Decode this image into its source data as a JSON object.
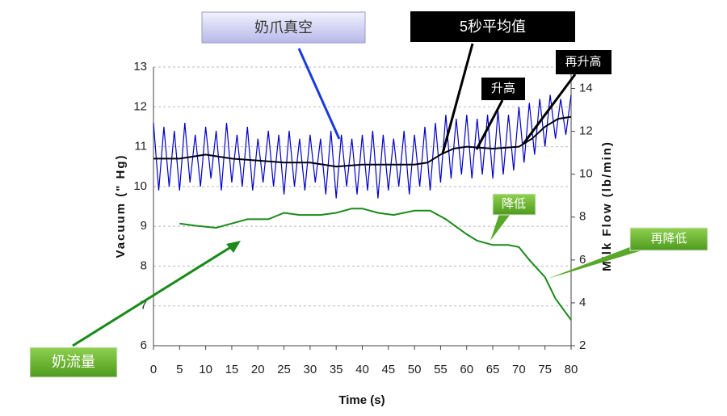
{
  "chart_data": {
    "type": "line",
    "xlabel": "Time (s)",
    "ylabel": "Vacuum (\" Hg)",
    "y2label": "Milk Flow (lb/min)",
    "xlim": [
      0,
      80
    ],
    "xticks": [
      0,
      5,
      10,
      15,
      20,
      25,
      30,
      35,
      40,
      45,
      50,
      55,
      60,
      65,
      70,
      75,
      80
    ],
    "ylim": [
      6,
      13
    ],
    "yticks": [
      6,
      7,
      8,
      9,
      10,
      11,
      12,
      13
    ],
    "y2lim": [
      2,
      15
    ],
    "y2ticks": [
      2,
      4,
      6,
      8,
      10,
      12,
      14
    ],
    "grid": true,
    "series": [
      {
        "name": "奶爪真空",
        "color": "#0000cc",
        "x": [
          0,
          1,
          2,
          3,
          4,
          5,
          6,
          7,
          8,
          9,
          10,
          11,
          12,
          13,
          14,
          15,
          16,
          17,
          18,
          19,
          20,
          21,
          22,
          23,
          24,
          25,
          26,
          27,
          28,
          29,
          30,
          31,
          32,
          33,
          34,
          35,
          36,
          37,
          38,
          39,
          40,
          41,
          42,
          43,
          44,
          45,
          46,
          47,
          48,
          49,
          50,
          51,
          52,
          53,
          54,
          55,
          56,
          57,
          58,
          59,
          60,
          61,
          62,
          63,
          64,
          65,
          66,
          67,
          68,
          69,
          70,
          71,
          72,
          73,
          74,
          75,
          76,
          77,
          78,
          79,
          80
        ],
        "values": [
          11.6,
          9.9,
          11.5,
          10.0,
          11.4,
          9.9,
          11.6,
          10.1,
          11.3,
          10.0,
          11.5,
          10.2,
          11.4,
          9.9,
          11.6,
          10.1,
          11.3,
          10.0,
          11.5,
          9.9,
          11.2,
          10.1,
          11.4,
          10.0,
          11.3,
          9.8,
          11.4,
          10.0,
          11.2,
          9.9,
          11.3,
          10.1,
          11.2,
          9.8,
          11.4,
          9.7,
          11.3,
          10.0,
          11.2,
          9.8,
          11.3,
          9.9,
          11.4,
          9.7,
          11.3,
          9.9,
          11.2,
          10.0,
          11.4,
          9.8,
          11.3,
          10.0,
          11.5,
          9.9,
          11.6,
          10.1,
          11.8,
          10.2,
          11.7,
          10.3,
          11.8,
          10.2,
          11.7,
          10.3,
          11.8,
          10.2,
          11.9,
          10.3,
          11.8,
          10.4,
          12.0,
          10.6,
          12.1,
          10.8,
          12.2,
          11.0,
          12.3,
          11.2,
          12.2,
          11.3,
          12.3
        ]
      },
      {
        "name": "5秒平均值",
        "color": "#000000",
        "x": [
          0,
          5,
          10,
          15,
          20,
          25,
          30,
          35,
          40,
          45,
          50,
          52.5,
          55,
          57.5,
          60,
          65,
          70,
          72.5,
          75,
          77.5,
          80
        ],
        "values": [
          10.7,
          10.7,
          10.8,
          10.7,
          10.65,
          10.6,
          10.6,
          10.5,
          10.55,
          10.55,
          10.55,
          10.6,
          10.8,
          10.95,
          11.0,
          10.95,
          11.0,
          11.2,
          11.5,
          11.7,
          11.75
        ]
      },
      {
        "name": "奶流量",
        "color": "#1a8a1a",
        "axis": "y2",
        "x": [
          5,
          8,
          12,
          15,
          18,
          22,
          25,
          28,
          32,
          35,
          38,
          40,
          43,
          46,
          50,
          53,
          56,
          60,
          62,
          65,
          68,
          70,
          72,
          75,
          77,
          80
        ],
        "values": [
          7.7,
          7.6,
          7.5,
          7.7,
          7.9,
          7.9,
          8.2,
          8.1,
          8.1,
          8.2,
          8.4,
          8.4,
          8.2,
          8.1,
          8.3,
          8.3,
          7.9,
          7.2,
          6.9,
          6.7,
          6.7,
          6.6,
          6.0,
          5.2,
          4.2,
          3.2
        ]
      }
    ],
    "annotations": [
      "奶爪真空",
      "5秒平均值",
      "升高",
      "再升高",
      "降低",
      "再降低",
      "奶流量"
    ]
  }
}
